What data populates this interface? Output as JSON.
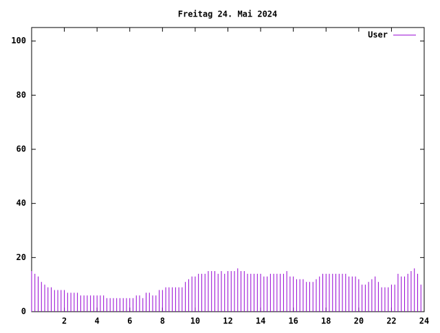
{
  "chart_data": {
    "type": "impulse",
    "title": "Freitag 24. Mai 2024",
    "x": [
      0,
      0.2,
      0.4,
      0.6,
      0.8,
      1,
      1.2,
      1.4,
      1.6,
      1.8,
      2,
      2.2,
      2.4,
      2.6,
      2.8,
      3,
      3.2,
      3.4,
      3.6,
      3.8,
      4,
      4.2,
      4.4,
      4.6,
      4.8,
      5,
      5.2,
      5.4,
      5.6,
      5.8,
      6,
      6.2,
      6.4,
      6.6,
      6.8,
      7,
      7.2,
      7.4,
      7.6,
      7.8,
      8,
      8.2,
      8.4,
      8.6,
      8.8,
      9,
      9.2,
      9.4,
      9.6,
      9.8,
      10,
      10.2,
      10.4,
      10.6,
      10.8,
      11,
      11.2,
      11.4,
      11.6,
      11.8,
      12,
      12.2,
      12.4,
      12.6,
      12.8,
      13,
      13.2,
      13.4,
      13.6,
      13.8,
      14,
      14.2,
      14.4,
      14.6,
      14.8,
      15,
      15.2,
      15.4,
      15.6,
      15.8,
      16,
      16.2,
      16.4,
      16.6,
      16.8,
      17,
      17.2,
      17.4,
      17.6,
      17.8,
      18,
      18.2,
      18.4,
      18.6,
      18.8,
      19,
      19.2,
      19.4,
      19.6,
      19.8,
      20,
      20.2,
      20.4,
      20.6,
      20.8,
      21,
      21.2,
      21.4,
      21.6,
      21.8,
      22,
      22.2,
      22.4,
      22.6,
      22.8,
      23,
      23.2,
      23.4,
      23.6,
      23.8
    ],
    "series": [
      {
        "name": "User",
        "color": "#9400d3",
        "values": [
          15,
          14,
          13,
          11,
          10,
          9,
          9,
          8,
          8,
          8,
          8,
          7,
          7,
          7,
          7,
          6,
          6,
          6,
          6,
          6,
          6,
          6,
          6,
          5,
          5,
          5,
          5,
          5,
          5,
          5,
          5,
          5,
          6,
          6,
          5,
          7,
          7,
          6,
          6,
          8,
          8,
          9,
          9,
          9,
          9,
          9,
          9,
          11,
          12,
          13,
          13,
          14,
          14,
          14,
          15,
          15,
          15,
          14,
          15,
          14,
          15,
          15,
          15,
          16,
          15,
          15,
          14,
          14,
          14,
          14,
          14,
          13,
          13,
          14,
          14,
          14,
          14,
          14,
          15,
          13,
          13,
          12,
          12,
          12,
          11,
          11,
          11,
          12,
          13,
          14,
          14,
          14,
          14,
          14,
          14,
          14,
          14,
          13,
          13,
          13,
          12,
          10,
          10,
          11,
          12,
          13,
          11,
          9,
          9,
          9,
          10,
          10,
          14,
          13,
          13,
          14,
          15,
          16,
          14,
          10
        ]
      }
    ],
    "xlim": [
      0,
      24
    ],
    "xticks": [
      2,
      4,
      6,
      8,
      10,
      12,
      14,
      16,
      18,
      20,
      22,
      24
    ],
    "ylim": [
      0,
      105
    ],
    "yticks": [
      0,
      20,
      40,
      60,
      80,
      100
    ],
    "legend": "top-right"
  }
}
